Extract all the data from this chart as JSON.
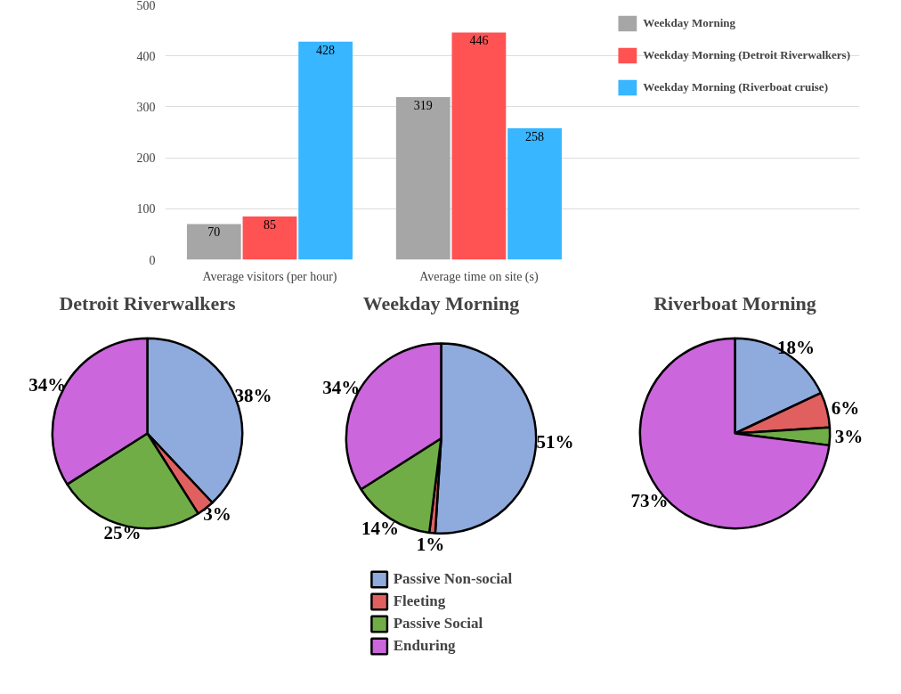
{
  "chart_data": [
    {
      "type": "bar",
      "categories": [
        "Average visitors (per hour)",
        "Average time on site (s)"
      ],
      "series": [
        {
          "name": "Weekday Morning",
          "color": "#a6a6a6",
          "values": [
            70,
            319
          ]
        },
        {
          "name": "Weekday Morning (Detroit Riverwalkers)",
          "color": "#ff5252",
          "values": [
            85,
            446
          ]
        },
        {
          "name": "Weekday Morning (Riverboat cruise)",
          "color": "#38b6ff",
          "values": [
            428,
            258
          ]
        }
      ],
      "ylim": [
        0,
        500
      ],
      "yticks": [
        0,
        100,
        200,
        300,
        400,
        500
      ],
      "grid": "y",
      "legend": "right",
      "data_labels": true
    },
    {
      "type": "pie",
      "title": "Detroit Riverwalkers",
      "values": [
        38,
        3,
        25,
        34
      ],
      "value_labels": [
        "38%",
        "3%",
        "25%",
        "34%"
      ],
      "colors": [
        "#8faadc",
        "#e06060",
        "#70ad47",
        "#cc66dd"
      ]
    },
    {
      "type": "pie",
      "title": "Weekday Morning",
      "categories": [
        "Passive Non-social",
        "Fleeting",
        "Passive Social",
        "Enduring"
      ],
      "values": [
        51,
        1,
        14,
        34
      ],
      "value_labels": [
        "51%",
        "1%",
        "14%",
        "34%"
      ],
      "colors": [
        "#8faadc",
        "#e06060",
        "#70ad47",
        "#cc66dd"
      ],
      "legend": "bottom"
    },
    {
      "type": "pie",
      "title": "Riverboat Morning",
      "values": [
        18,
        6,
        3,
        73
      ],
      "value_labels": [
        "18%",
        "6%",
        "3%",
        "73%"
      ],
      "colors": [
        "#8faadc",
        "#e06060",
        "#70ad47",
        "#cc66dd"
      ]
    }
  ]
}
